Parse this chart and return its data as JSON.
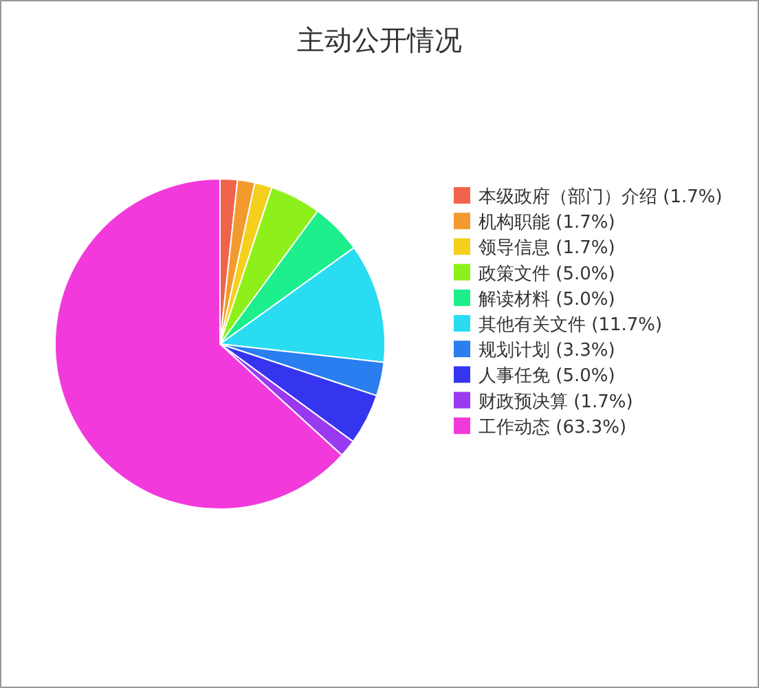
{
  "chart_data": {
    "type": "pie",
    "title": "主动公开情况",
    "categories": [
      "本级政府（部门）介绍 (1.7%)",
      "机构职能 (1.7%)",
      "领导信息 (1.7%)",
      "政策文件 (5.0%)",
      "解读材料 (5.0%)",
      "其他有关文件 (11.7%)",
      "规划计划 (3.3%)",
      "人事任免 (5.0%)",
      "财政预决算 (1.7%)",
      "工作动态 (63.3%)"
    ],
    "values": [
      1.7,
      1.7,
      1.7,
      5.0,
      5.0,
      11.7,
      3.3,
      5.0,
      1.7,
      63.3
    ],
    "colors": [
      "#f2634c",
      "#f29a2e",
      "#f5cf1e",
      "#8ef01a",
      "#1cef8c",
      "#2adcf2",
      "#2a7ef0",
      "#3535f0",
      "#9a3af0",
      "#f23adc"
    ],
    "legend": "right"
  }
}
